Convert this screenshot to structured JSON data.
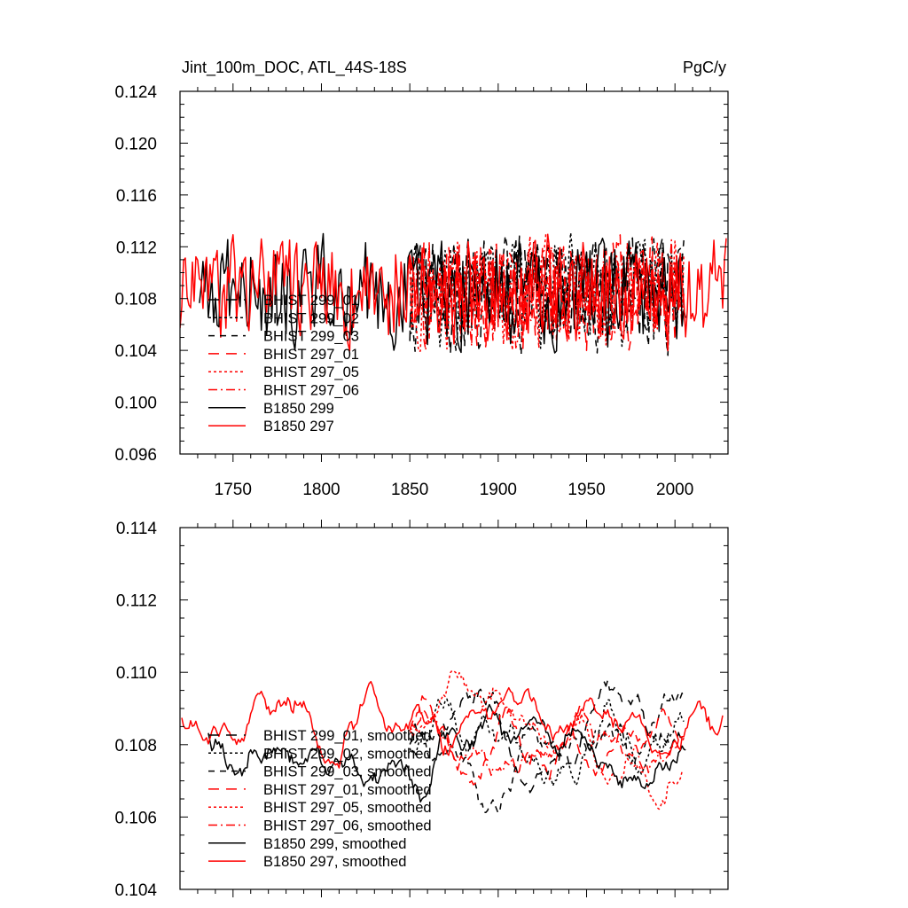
{
  "chart_data": [
    {
      "type": "line",
      "title": "Jint_100m_DOC, ATL_44S-18S",
      "units": "PgC/y",
      "xlim": [
        1720,
        2030
      ],
      "ylim": [
        0.096,
        0.124
      ],
      "xticks": [
        1750,
        1800,
        1850,
        1900,
        1950,
        2000
      ],
      "yticks": [
        0.096,
        0.1,
        0.104,
        0.108,
        0.112,
        0.116,
        0.12,
        0.124
      ],
      "ytick_labels": [
        "0.096",
        "0.100",
        "0.104",
        "0.108",
        "0.112",
        "0.116",
        "0.120",
        "0.124"
      ],
      "legend_position": "bottom-left",
      "series": [
        {
          "name": "BHIST 299_01",
          "color": "#000000",
          "dash": "long-dash",
          "style": "noise",
          "x_start": 1850,
          "x_end": 2005,
          "mean": 0.1085,
          "amp": 0.004,
          "seed": 11
        },
        {
          "name": "BHIST 299_02",
          "color": "#000000",
          "dash": "dot",
          "style": "noise",
          "x_start": 1850,
          "x_end": 2005,
          "mean": 0.1085,
          "amp": 0.004,
          "seed": 12
        },
        {
          "name": "BHIST 299_03",
          "color": "#000000",
          "dash": "dash",
          "style": "noise",
          "x_start": 1850,
          "x_end": 2005,
          "mean": 0.1085,
          "amp": 0.004,
          "seed": 13
        },
        {
          "name": "BHIST 297_01",
          "color": "#ff0000",
          "dash": "long-dash",
          "style": "noise",
          "x_start": 1850,
          "x_end": 2005,
          "mean": 0.1085,
          "amp": 0.004,
          "seed": 21
        },
        {
          "name": "BHIST 297_05",
          "color": "#ff0000",
          "dash": "dot",
          "style": "noise",
          "x_start": 1850,
          "x_end": 2005,
          "mean": 0.1085,
          "amp": 0.004,
          "seed": 22
        },
        {
          "name": "BHIST 297_06",
          "color": "#ff0000",
          "dash": "dash-dot",
          "style": "noise",
          "x_start": 1850,
          "x_end": 2005,
          "mean": 0.1085,
          "amp": 0.004,
          "seed": 23
        },
        {
          "name": "B1850 299",
          "color": "#000000",
          "dash": "solid",
          "style": "noise",
          "x_start": 1731,
          "x_end": 2006,
          "mean": 0.1085,
          "amp": 0.0038,
          "seed": 31
        },
        {
          "name": "B1850 297",
          "color": "#ff0000",
          "dash": "solid",
          "style": "noise",
          "x_start": 1720,
          "x_end": 2029,
          "mean": 0.1088,
          "amp": 0.0038,
          "seed": 41
        }
      ]
    },
    {
      "type": "line",
      "xlim": [
        1720,
        2030
      ],
      "ylim": [
        0.104,
        0.114
      ],
      "yticks": [
        0.104,
        0.106,
        0.108,
        0.11,
        0.112,
        0.114
      ],
      "ytick_labels": [
        "0.104",
        "0.106",
        "0.108",
        "0.110",
        "0.112",
        "0.114"
      ],
      "legend_position": "bottom-left",
      "series": [
        {
          "name": "BHIST 299_01, smoothed",
          "color": "#000000",
          "dash": "long-dash",
          "style": "smooth",
          "x_start": 1850,
          "x_end": 2005,
          "mean": 0.108,
          "amp": 0.0013,
          "seed": 51
        },
        {
          "name": "BHIST 299_02, smoothed",
          "color": "#000000",
          "dash": "dot",
          "style": "smooth",
          "x_start": 1850,
          "x_end": 2005,
          "mean": 0.1078,
          "amp": 0.0014,
          "seed": 52
        },
        {
          "name": "BHIST 299_03, smoothed",
          "color": "#000000",
          "dash": "dash",
          "style": "smooth",
          "x_start": 1850,
          "x_end": 2005,
          "mean": 0.108,
          "amp": 0.0013,
          "seed": 53
        },
        {
          "name": "BHIST 297_01, smoothed",
          "color": "#ff0000",
          "dash": "long-dash",
          "style": "smooth",
          "x_start": 1850,
          "x_end": 2005,
          "mean": 0.1085,
          "amp": 0.0013,
          "seed": 61
        },
        {
          "name": "BHIST 297_05, smoothed",
          "color": "#ff0000",
          "dash": "dot",
          "style": "smooth",
          "x_start": 1850,
          "x_end": 2005,
          "mean": 0.1085,
          "amp": 0.0013,
          "seed": 62
        },
        {
          "name": "BHIST 297_06, smoothed",
          "color": "#ff0000",
          "dash": "dash-dot",
          "style": "smooth",
          "x_start": 1850,
          "x_end": 2005,
          "mean": 0.1083,
          "amp": 0.0013,
          "seed": 63
        },
        {
          "name": "B1850 299, smoothed",
          "color": "#000000",
          "dash": "solid",
          "style": "smooth",
          "x_start": 1736,
          "x_end": 2006,
          "mean": 0.1083,
          "amp": 0.0012,
          "seed": 71
        },
        {
          "name": "B1850 297, smoothed",
          "color": "#ff0000",
          "dash": "solid",
          "style": "smooth",
          "x_start": 1721,
          "x_end": 2027,
          "mean": 0.1086,
          "amp": 0.0012,
          "seed": 81
        }
      ]
    }
  ]
}
